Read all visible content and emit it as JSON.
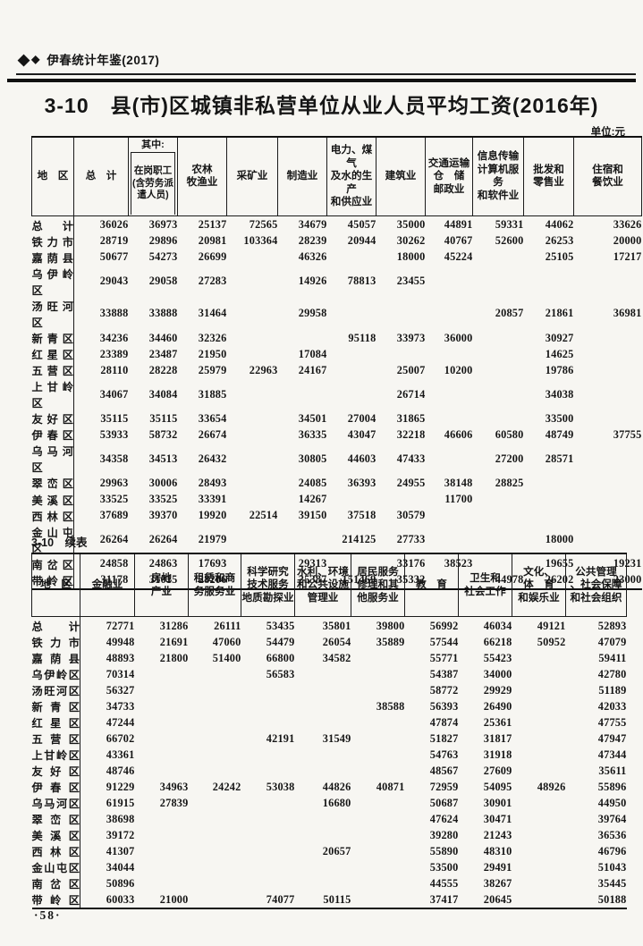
{
  "page": {
    "brand": {
      "diamond_large": "◆",
      "diamond_small": "◆",
      "text": "伊春统计年鉴(2017)"
    },
    "title": "3-10　县(市)区城镇非私营单位从业人员平均工资(2016年)",
    "unit_label": "单位:元",
    "continued_label": "3-10　续表",
    "page_number": "·58·"
  },
  "table1": {
    "region_header": "地　区",
    "total_header": "总　计",
    "subtotal_prefix": "其中:",
    "subtotal_label": "在岗职工\n(含劳务派遣人员)",
    "industry_headers": [
      "农林\n牧渔业",
      "采矿业",
      "制造业",
      "电力、煤气\n及水的生产\n和供应业",
      "建筑业",
      "交通运输\n仓　储\n邮政业",
      "信息传输\n计算机服务\n和软件业",
      "批发和\n零售业",
      "住宿和\n餐饮业"
    ],
    "rows": [
      {
        "region": "总计",
        "values": [
          "36026",
          "36973",
          "25137",
          "72565",
          "34679",
          "45057",
          "35000",
          "44891",
          "59331",
          "44062",
          "33626"
        ]
      },
      {
        "region": "铁力市",
        "values": [
          "28719",
          "29896",
          "20981",
          "103364",
          "28239",
          "20944",
          "30262",
          "40767",
          "52600",
          "26253",
          "20000"
        ]
      },
      {
        "region": "嘉荫县",
        "values": [
          "50677",
          "54273",
          "26699",
          "",
          "46326",
          "",
          "18000",
          "45224",
          "",
          "25105",
          "17217"
        ]
      },
      {
        "region": "乌伊岭区",
        "values": [
          "29043",
          "29058",
          "27283",
          "",
          "14926",
          "78813",
          "23455",
          "",
          "",
          "",
          ""
        ]
      },
      {
        "region": "汤旺河区",
        "values": [
          "33888",
          "33888",
          "31464",
          "",
          "29958",
          "",
          "",
          "",
          "20857",
          "21861",
          "36981"
        ]
      },
      {
        "region": "新青区",
        "values": [
          "34236",
          "34460",
          "32326",
          "",
          "",
          "95118",
          "33973",
          "36000",
          "",
          "30927",
          ""
        ]
      },
      {
        "region": "红星区",
        "values": [
          "23389",
          "23487",
          "21950",
          "",
          "17084",
          "",
          "",
          "",
          "",
          "14625",
          ""
        ]
      },
      {
        "region": "五营区",
        "values": [
          "28110",
          "28228",
          "25979",
          "22963",
          "24167",
          "",
          "25007",
          "10200",
          "",
          "19786",
          ""
        ]
      },
      {
        "region": "上甘岭区",
        "values": [
          "34067",
          "34084",
          "31885",
          "",
          "",
          "",
          "26714",
          "",
          "",
          "34038",
          ""
        ]
      },
      {
        "region": "友好区",
        "values": [
          "35115",
          "35115",
          "33654",
          "",
          "34501",
          "27004",
          "31865",
          "",
          "",
          "33500",
          ""
        ]
      },
      {
        "region": "伊春区",
        "values": [
          "53933",
          "58732",
          "26674",
          "",
          "36335",
          "43047",
          "32218",
          "46606",
          "60580",
          "48749",
          "37755"
        ]
      },
      {
        "region": "乌马河区",
        "values": [
          "34358",
          "34513",
          "26432",
          "",
          "30805",
          "44603",
          "47433",
          "",
          "27200",
          "28571",
          ""
        ]
      },
      {
        "region": "翠峦区",
        "values": [
          "29963",
          "30006",
          "28493",
          "",
          "24085",
          "36393",
          "24955",
          "38148",
          "28825",
          "",
          ""
        ]
      },
      {
        "region": "美溪区",
        "values": [
          "33525",
          "33525",
          "33391",
          "",
          "14267",
          "",
          "",
          "11700",
          "",
          "",
          ""
        ]
      },
      {
        "region": "西林区",
        "values": [
          "37689",
          "39370",
          "19920",
          "22514",
          "39150",
          "37518",
          "30579",
          "",
          "",
          "",
          ""
        ]
      },
      {
        "region": "金山屯区",
        "values": [
          "26264",
          "26264",
          "21979",
          "",
          "",
          "214125",
          "27733",
          "",
          "",
          "18000",
          ""
        ]
      },
      {
        "region": "南岔区",
        "values": [
          "24858",
          "24863",
          "17693",
          "",
          "29313",
          "",
          "33176",
          "38523",
          "",
          "19655",
          "19231"
        ]
      },
      {
        "region": "带岭区",
        "values": [
          "31178",
          "31015",
          "28206",
          "",
          "25387",
          "151469",
          "35332",
          "",
          "44978",
          "26202",
          "23000"
        ]
      }
    ]
  },
  "table2": {
    "region_header": "地　区",
    "industry_headers": [
      "金融业",
      "房地\n产业",
      "租赁和商\n务服务业",
      "科学研究\n技术服务\n地质勘探业",
      "水利、环境\n和公共设施\n管理业",
      "居民服务\n修理和其\n他服务业",
      "教　育",
      "卫生和\n社会工作",
      "文化、\n体　育\n和娱乐业",
      "公共管理\n、社会保障\n和社会组织"
    ],
    "rows": [
      {
        "region": "总计",
        "values": [
          "72771",
          "31286",
          "26111",
          "53435",
          "35801",
          "39800",
          "56992",
          "46034",
          "49121",
          "52893"
        ]
      },
      {
        "region": "铁力市",
        "values": [
          "49948",
          "21691",
          "47060",
          "54479",
          "26054",
          "35889",
          "57544",
          "66218",
          "50952",
          "47079"
        ]
      },
      {
        "region": "嘉荫县",
        "values": [
          "48893",
          "21800",
          "51400",
          "66800",
          "34582",
          "",
          "55771",
          "55423",
          "",
          "59411"
        ]
      },
      {
        "region": "乌伊岭区",
        "values": [
          "70314",
          "",
          "",
          "56583",
          "",
          "",
          "54387",
          "34000",
          "",
          "42780"
        ]
      },
      {
        "region": "汤旺河区",
        "values": [
          "56327",
          "",
          "",
          "",
          "",
          "",
          "58772",
          "29929",
          "",
          "51189"
        ]
      },
      {
        "region": "新青区",
        "values": [
          "34733",
          "",
          "",
          "",
          "",
          "38588",
          "56393",
          "26490",
          "",
          "42033"
        ]
      },
      {
        "region": "红星区",
        "values": [
          "47244",
          "",
          "",
          "",
          "",
          "",
          "47874",
          "25361",
          "",
          "47755"
        ]
      },
      {
        "region": "五营区",
        "values": [
          "66702",
          "",
          "",
          "42191",
          "31549",
          "",
          "51827",
          "31817",
          "",
          "47947"
        ]
      },
      {
        "region": "上甘岭区",
        "values": [
          "43361",
          "",
          "",
          "",
          "",
          "",
          "54763",
          "31918",
          "",
          "47344"
        ]
      },
      {
        "region": "友好区",
        "values": [
          "48746",
          "",
          "",
          "",
          "",
          "",
          "48567",
          "27609",
          "",
          "35611"
        ]
      },
      {
        "region": "伊春区",
        "values": [
          "91229",
          "34963",
          "24242",
          "53038",
          "44826",
          "40871",
          "72959",
          "54095",
          "48926",
          "55896"
        ]
      },
      {
        "region": "乌马河区",
        "values": [
          "61915",
          "27839",
          "",
          "",
          "16680",
          "",
          "50687",
          "30901",
          "",
          "44950"
        ]
      },
      {
        "region": "翠峦区",
        "values": [
          "38698",
          "",
          "",
          "",
          "",
          "",
          "47624",
          "30471",
          "",
          "39764"
        ]
      },
      {
        "region": "美溪区",
        "values": [
          "39172",
          "",
          "",
          "",
          "",
          "",
          "39280",
          "21243",
          "",
          "36536"
        ]
      },
      {
        "region": "西林区",
        "values": [
          "41307",
          "",
          "",
          "",
          "20657",
          "",
          "55890",
          "48310",
          "",
          "46796"
        ]
      },
      {
        "region": "金山屯区",
        "values": [
          "34044",
          "",
          "",
          "",
          "",
          "",
          "53500",
          "29491",
          "",
          "51043"
        ]
      },
      {
        "region": "南岔区",
        "values": [
          "50896",
          "",
          "",
          "",
          "",
          "",
          "44555",
          "38267",
          "",
          "35445"
        ]
      },
      {
        "region": "带岭区",
        "values": [
          "60033",
          "21000",
          "",
          "74077",
          "50115",
          "",
          "37417",
          "20645",
          "",
          "50188"
        ]
      }
    ]
  }
}
